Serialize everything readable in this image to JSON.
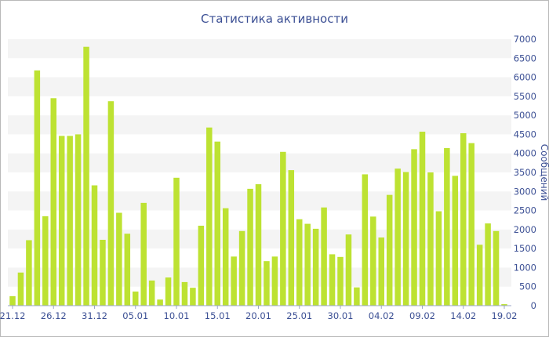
{
  "chart_data": {
    "type": "bar",
    "title": "Статистика активности",
    "ylabel": "Сообщений",
    "xlabel": "",
    "ylim": [
      0,
      7000
    ],
    "y_ticks": [
      0,
      500,
      1000,
      1500,
      2000,
      2500,
      3000,
      3500,
      4000,
      4500,
      5000,
      5500,
      6000,
      6500,
      7000
    ],
    "grid": "alternating horizontal bands",
    "bar_color": "#bde232",
    "x_tick_labels": [
      {
        "index": 0,
        "label": "21.12"
      },
      {
        "index": 5,
        "label": "26.12"
      },
      {
        "index": 10,
        "label": "31.12"
      },
      {
        "index": 15,
        "label": "05.01"
      },
      {
        "index": 20,
        "label": "10.01"
      },
      {
        "index": 25,
        "label": "15.01"
      },
      {
        "index": 30,
        "label": "20.01"
      },
      {
        "index": 35,
        "label": "25.01"
      },
      {
        "index": 40,
        "label": "30.01"
      },
      {
        "index": 45,
        "label": "04.02"
      },
      {
        "index": 50,
        "label": "09.02"
      },
      {
        "index": 55,
        "label": "14.02"
      },
      {
        "index": 60,
        "label": "19.02"
      }
    ],
    "values": [
      250,
      870,
      1720,
      6180,
      2350,
      5450,
      4460,
      4460,
      4500,
      6800,
      3160,
      1730,
      5370,
      2440,
      1890,
      370,
      2700,
      660,
      160,
      740,
      3360,
      620,
      470,
      2100,
      4680,
      4310,
      2560,
      1290,
      1960,
      3070,
      3190,
      1170,
      1290,
      4040,
      3560,
      2270,
      2150,
      2020,
      2580,
      1350,
      1280,
      1870,
      480,
      3450,
      2340,
      1790,
      2910,
      3600,
      3510,
      4110,
      4570,
      3500,
      2480,
      4140,
      3410,
      4530,
      4270,
      1600,
      2160,
      1960,
      40
    ]
  }
}
